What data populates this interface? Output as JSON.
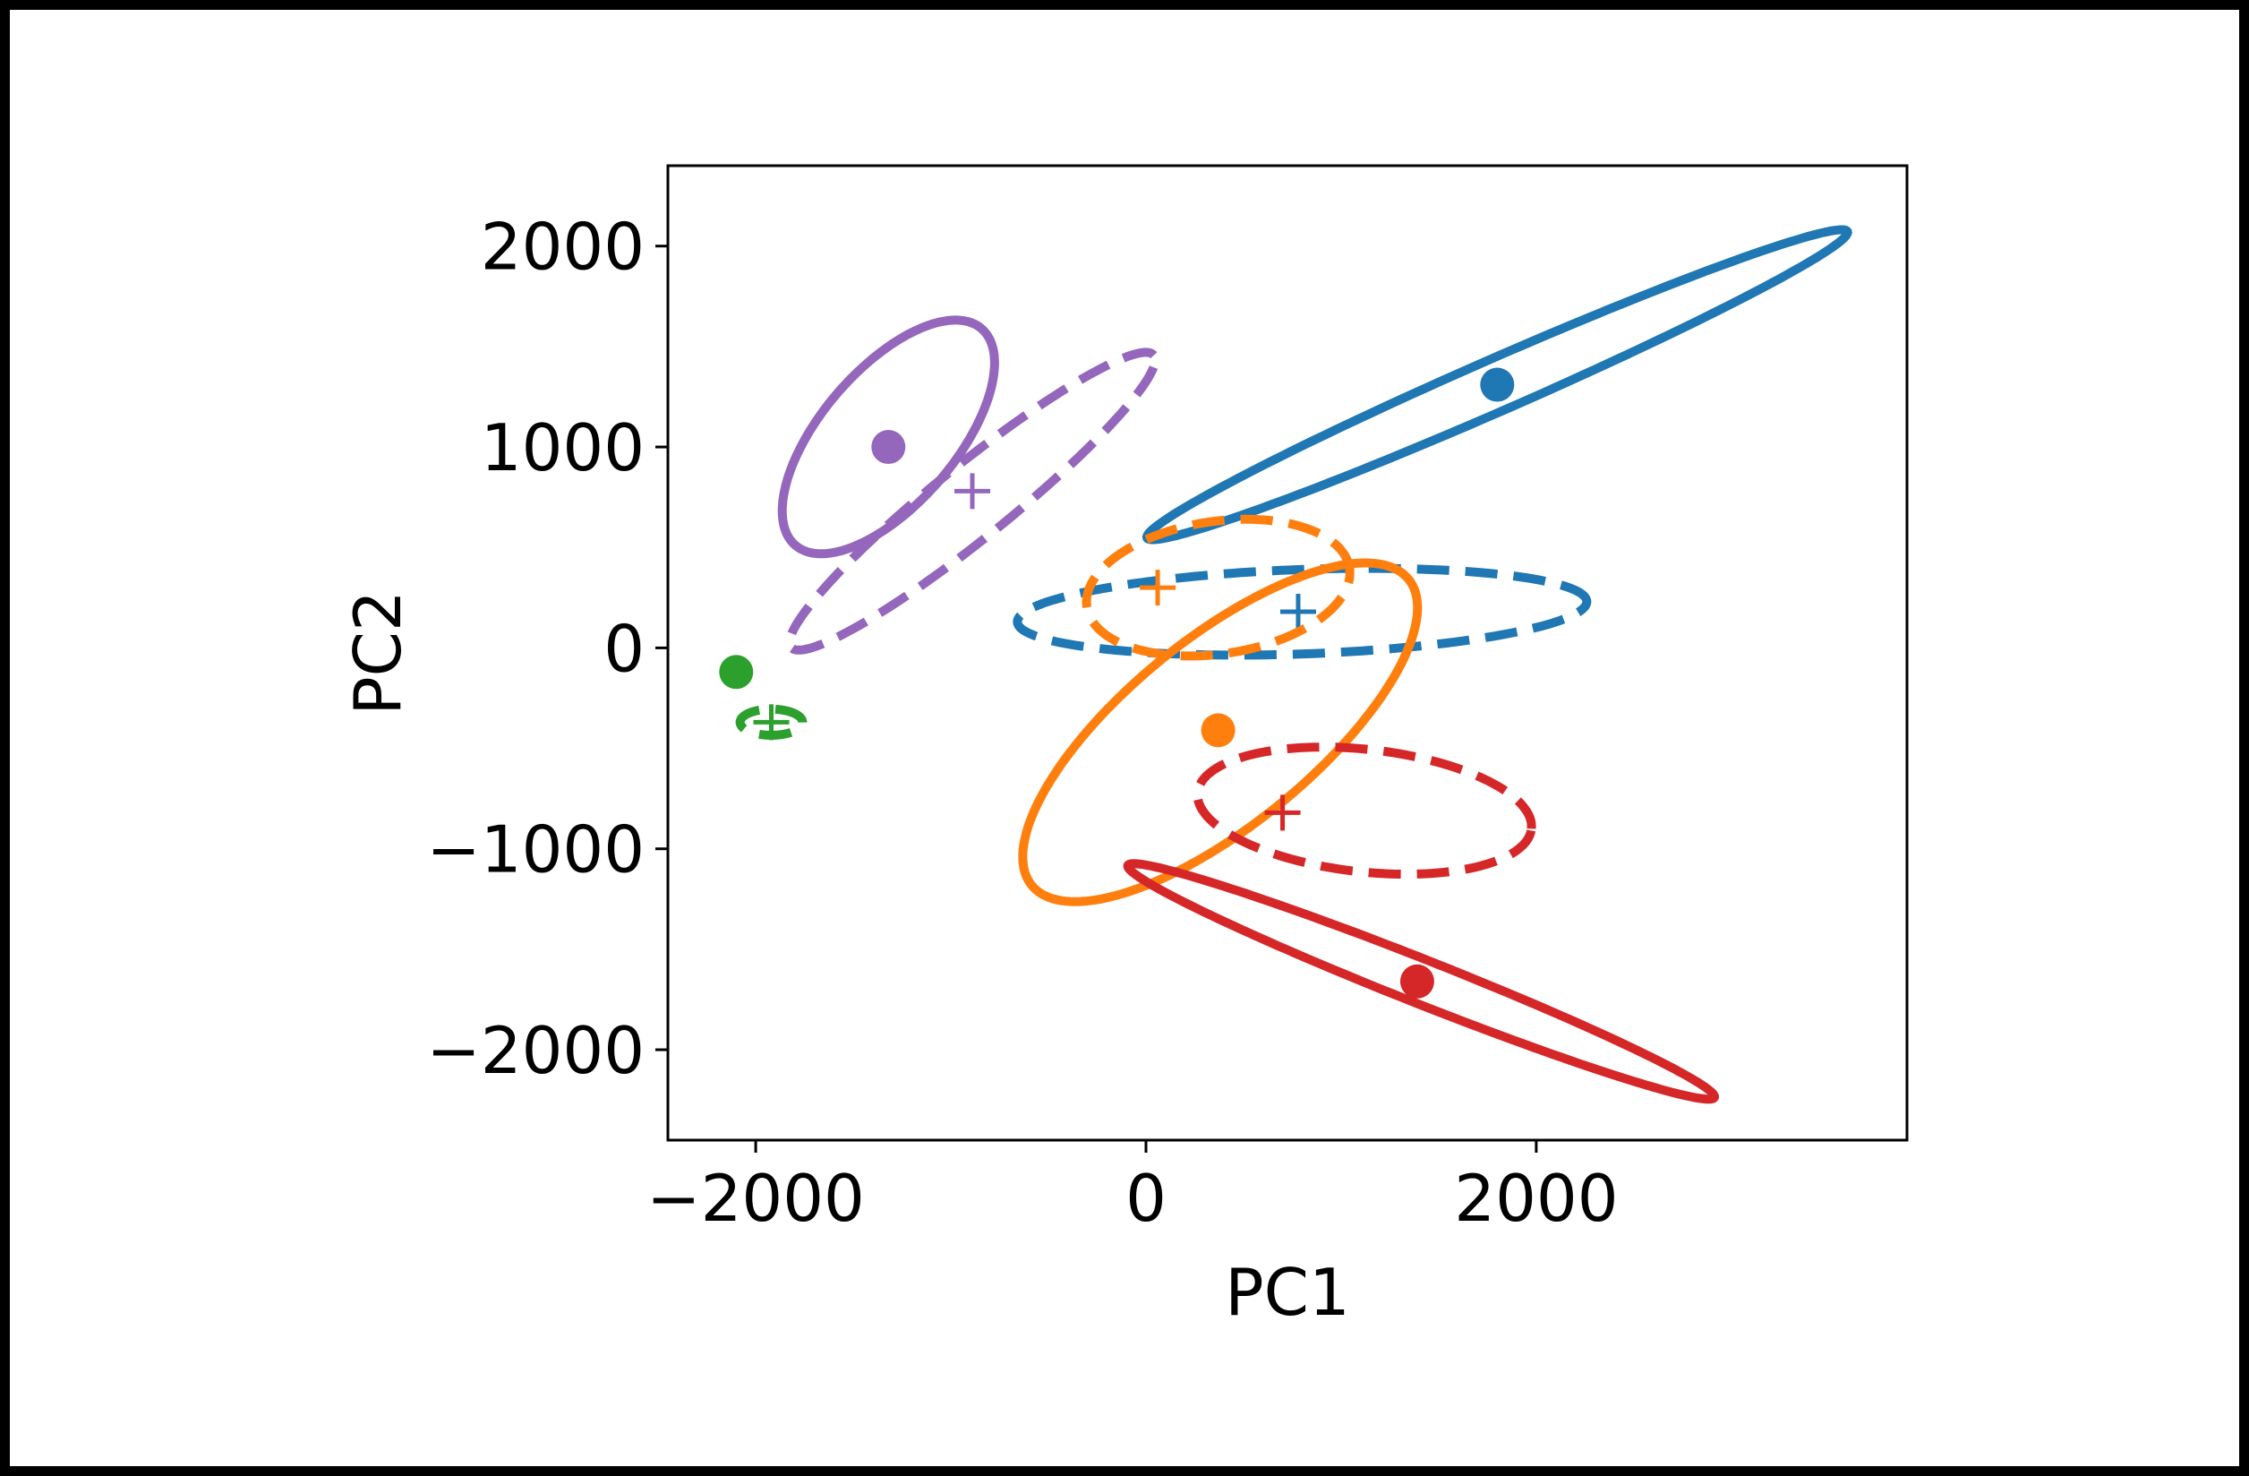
{
  "chart_data": {
    "type": "scatter",
    "title": "",
    "xlabel": "PC1",
    "ylabel": "PC2",
    "xlim": [
      -2450,
      3900
    ],
    "ylim": [
      -2450,
      2400
    ],
    "xticks": [
      -2000,
      0,
      2000
    ],
    "yticks": [
      -2000,
      -1000,
      0,
      1000,
      2000
    ],
    "xtick_labels": [
      "−2000",
      "0",
      "2000"
    ],
    "ytick_labels": [
      "−2000",
      "−1000",
      "0",
      "1000",
      "2000"
    ],
    "grid": false,
    "legend": "none",
    "series": [
      {
        "color": "#1f77b4",
        "solid_ellipse": {
          "center": [
            1800,
            1310
          ],
          "semi_major": 1950,
          "semi_minor": 130,
          "angle_deg": 23
        },
        "dot": [
          1800,
          1310
        ],
        "dashed_ellipse": {
          "center": [
            800,
            180
          ],
          "semi_major": 1460,
          "semi_minor": 210,
          "angle_deg": 2
        },
        "plus": [
          780,
          180
        ]
      },
      {
        "color": "#ff7f0e",
        "solid_ellipse": {
          "center": [
            380,
            -420
          ],
          "semi_major": 1230,
          "semi_minor": 470,
          "angle_deg": 38
        },
        "dot": [
          370,
          -410
        ],
        "dashed_ellipse": {
          "center": [
            370,
            300
          ],
          "semi_major": 680,
          "semi_minor": 330,
          "angle_deg": 8
        },
        "plus": [
          60,
          300
        ]
      },
      {
        "color": "#2ca02c",
        "solid_ellipse": null,
        "dot": [
          -2100,
          -120
        ],
        "dashed_ellipse": {
          "center": [
            -1920,
            -370
          ],
          "semi_major": 160,
          "semi_minor": 65,
          "angle_deg": 0
        },
        "plus": [
          -1920,
          -370
        ]
      },
      {
        "color": "#d62728",
        "solid_ellipse": {
          "center": [
            1410,
            -1660
          ],
          "semi_major": 1610,
          "semi_minor": 110,
          "angle_deg": -21
        },
        "dot": [
          1390,
          -1660
        ],
        "dashed_ellipse": {
          "center": [
            1120,
            -810
          ],
          "semi_major": 860,
          "semi_minor": 305,
          "angle_deg": -6
        },
        "plus": [
          700,
          -820
        ]
      },
      {
        "color": "#9467bd",
        "solid_ellipse": {
          "center": [
            -1320,
            1050
          ],
          "semi_major": 720,
          "semi_minor": 340,
          "angle_deg": 48
        },
        "dot": [
          -1320,
          1000
        ],
        "dashed_ellipse": {
          "center": [
            -890,
            730
          ],
          "semi_major": 1180,
          "semi_minor": 185,
          "angle_deg": 38
        },
        "plus": [
          -890,
          780
        ]
      }
    ]
  }
}
